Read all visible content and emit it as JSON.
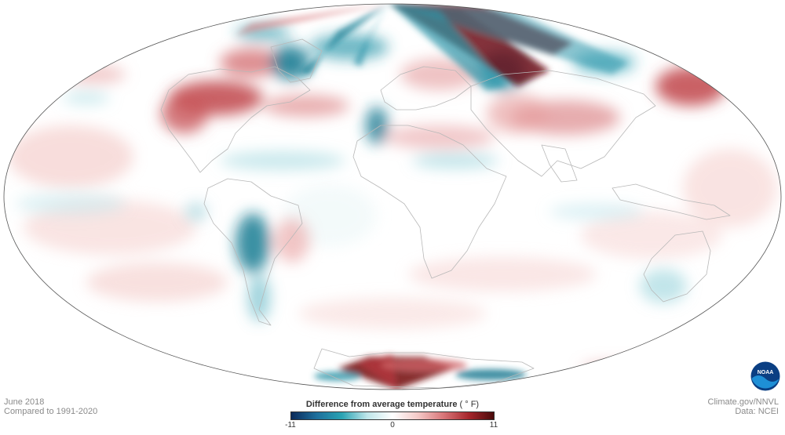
{
  "map": {
    "projection": "world map, Pacific at edges, Africa/Europe centered",
    "month": "June 2018",
    "baseline": "Compared to 1991-2020",
    "credit": "Climate.gov/NNVL",
    "data_source": "Data: NCEI"
  },
  "legend": {
    "title": "Difference from average temperature",
    "unit": "( ° F)",
    "min_label": "-11",
    "mid_label": "0",
    "max_label": "11",
    "min": -11,
    "max": 11,
    "colors": [
      "#0b2a5a",
      "#1e6f9c",
      "#2aa3b3",
      "#bfe6ea",
      "#ffffff",
      "#f4c9c7",
      "#d9777a",
      "#a8262c",
      "#4a0a0a"
    ]
  },
  "logo": {
    "icon": "noaa-logo-icon",
    "text": "NOAA"
  },
  "colors": {
    "ocean_neutral": "#ffffff",
    "border_line": "#b8b8b8",
    "map_outline": "#555555"
  }
}
